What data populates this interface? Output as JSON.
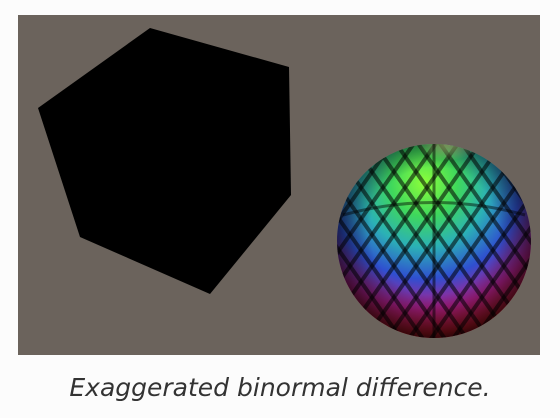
{
  "caption": "Exaggerated binormal difference.",
  "icons": {
    "cube": "black-cube-render",
    "sphere": "rainbow-binormal-sphere-render"
  },
  "colors": {
    "viewport_background": "#6b635c",
    "cube": "#000000",
    "page_background": "#fcfcfc",
    "caption_text": "#333333"
  }
}
